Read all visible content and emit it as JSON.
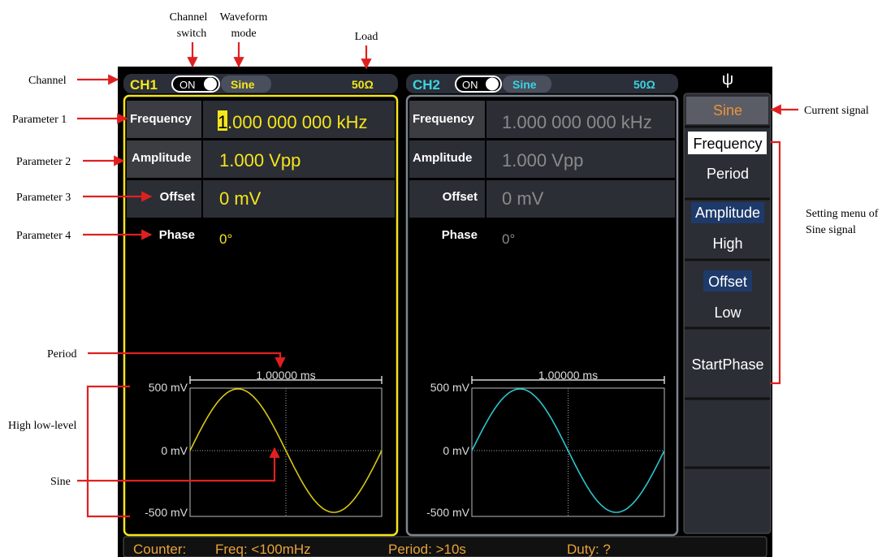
{
  "annotations": {
    "channel_switch": [
      "Channel",
      "switch"
    ],
    "waveform_mode": [
      "Waveform",
      "mode"
    ],
    "load": "Load",
    "channel": "Channel",
    "parameter_1": "Parameter 1",
    "parameter_2": "Parameter 2",
    "parameter_3": "Parameter 3",
    "parameter_4": "Parameter 4",
    "period": "Period",
    "high_low_level": "High low-level",
    "sine": "Sine",
    "current_signal": "Current signal",
    "setting_menu": [
      "Setting menu of",
      "Sine signal"
    ]
  },
  "ch1": {
    "name": "CH1",
    "state": "ON",
    "wave": "Sine",
    "load": "50Ω",
    "params": [
      {
        "label": "Frequency",
        "cursor": "1",
        "value": ".000 000 000 kHz"
      },
      {
        "label": "Amplitude",
        "value": "1.000 Vpp"
      },
      {
        "label": "Offset",
        "value": "0 mV"
      },
      {
        "label": "Phase",
        "value": "0°"
      }
    ],
    "period": "1.00000 ms",
    "levels": [
      "500 mV",
      "0 mV",
      "-500 mV"
    ]
  },
  "ch2": {
    "name": "CH2",
    "state": "ON",
    "wave": "Sine",
    "load": "50Ω",
    "params": [
      {
        "label": "Frequency",
        "value": "1.000 000 000 kHz"
      },
      {
        "label": "Amplitude",
        "value": "1.000 Vpp"
      },
      {
        "label": "Offset",
        "value": "0 mV"
      },
      {
        "label": "Phase",
        "value": "0°"
      }
    ],
    "period": "1.00000 ms",
    "levels": [
      "500 mV",
      "0 mV",
      "-500 mV"
    ]
  },
  "menu": {
    "current": "Sine",
    "items": [
      "Frequency",
      "Period",
      "Amplitude",
      "High",
      "Offset",
      "Low",
      "StartPhase"
    ]
  },
  "status": {
    "counter": "Counter:",
    "freq": "Freq: <100mHz",
    "period": "Period: >10s",
    "duty": "Duty: ?"
  }
}
